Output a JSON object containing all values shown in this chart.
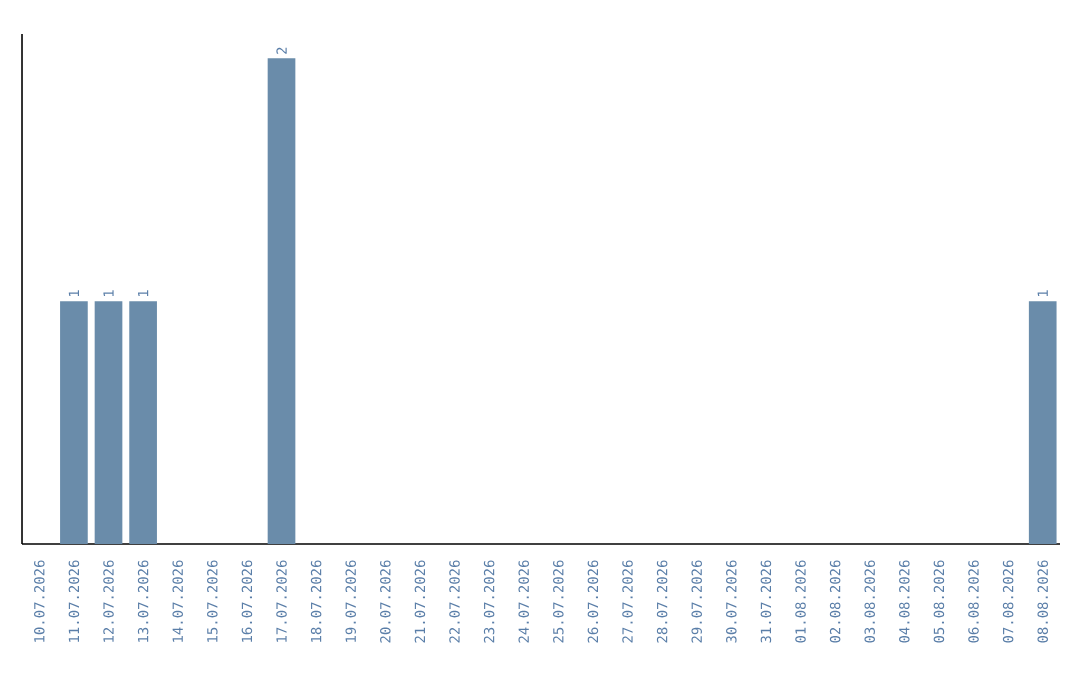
{
  "chart_data": {
    "type": "bar",
    "categories": [
      "10.07.2026",
      "11.07.2026",
      "12.07.2026",
      "13.07.2026",
      "14.07.2026",
      "15.07.2026",
      "16.07.2026",
      "17.07.2026",
      "18.07.2026",
      "19.07.2026",
      "20.07.2026",
      "21.07.2026",
      "22.07.2026",
      "23.07.2026",
      "24.07.2026",
      "25.07.2026",
      "26.07.2026",
      "27.07.2026",
      "28.07.2026",
      "29.07.2026",
      "30.07.2026",
      "31.07.2026",
      "01.08.2026",
      "02.08.2026",
      "03.08.2026",
      "04.08.2026",
      "05.08.2026",
      "06.08.2026",
      "07.08.2026",
      "08.08.2026"
    ],
    "values": [
      0,
      1,
      1,
      1,
      0,
      0,
      0,
      2,
      0,
      0,
      0,
      0,
      0,
      0,
      0,
      0,
      0,
      0,
      0,
      0,
      0,
      0,
      0,
      0,
      0,
      0,
      0,
      0,
      0,
      1
    ],
    "value_labels": [
      null,
      "1",
      "1",
      "1",
      null,
      null,
      null,
      "2",
      null,
      null,
      null,
      null,
      null,
      null,
      null,
      null,
      null,
      null,
      null,
      null,
      null,
      null,
      null,
      null,
      null,
      null,
      null,
      null,
      null,
      "1"
    ],
    "color": "#6a8caa"
  }
}
